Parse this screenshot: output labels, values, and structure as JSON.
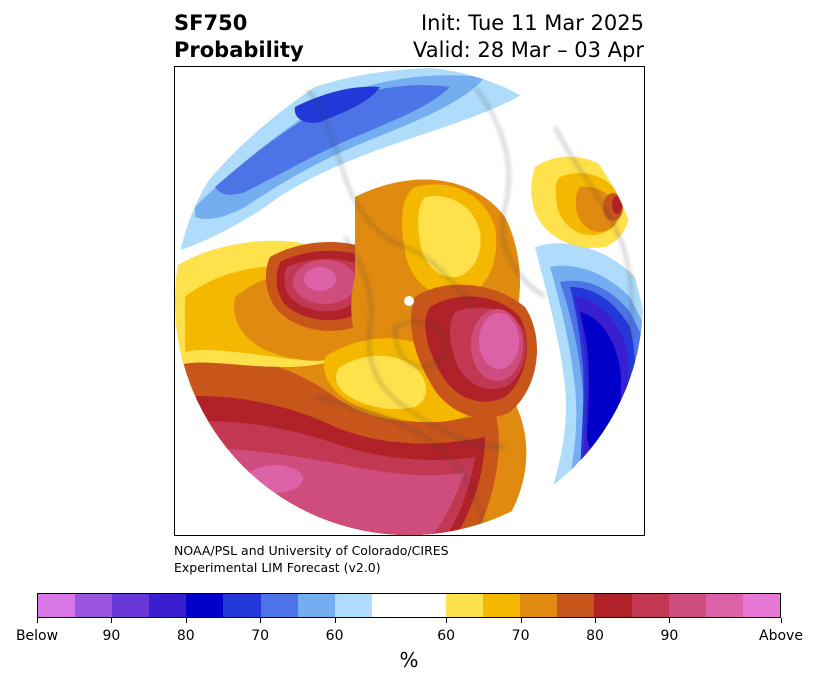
{
  "title": {
    "variable": "SF750",
    "product": "Probability",
    "init": "Init: Tue 11 Mar 2025",
    "valid": "Valid: 28 Mar – 03 Apr"
  },
  "credit": {
    "line1": "NOAA/PSL and University of Colorado/CIRES",
    "line2": "Experimental LIM Forecast (v2.0)"
  },
  "colorbar": {
    "unit": "%",
    "below_colors": [
      "#d878e8",
      "#9a55e0",
      "#6a37d8",
      "#3a1fd0",
      "#0000c8",
      "#2338d8",
      "#4c74e6",
      "#74aef0",
      "#aedcfa"
    ],
    "neutral_color": "#ffffff",
    "above_colors": [
      "#ffe14c",
      "#f5b800",
      "#e08a10",
      "#c8561a",
      "#b02228",
      "#c23752",
      "#cf4d7c",
      "#dc62a8",
      "#e878d8"
    ],
    "labels": [
      "Below",
      "90",
      "80",
      "70",
      "60",
      "60",
      "70",
      "80",
      "90",
      "Above"
    ]
  }
}
